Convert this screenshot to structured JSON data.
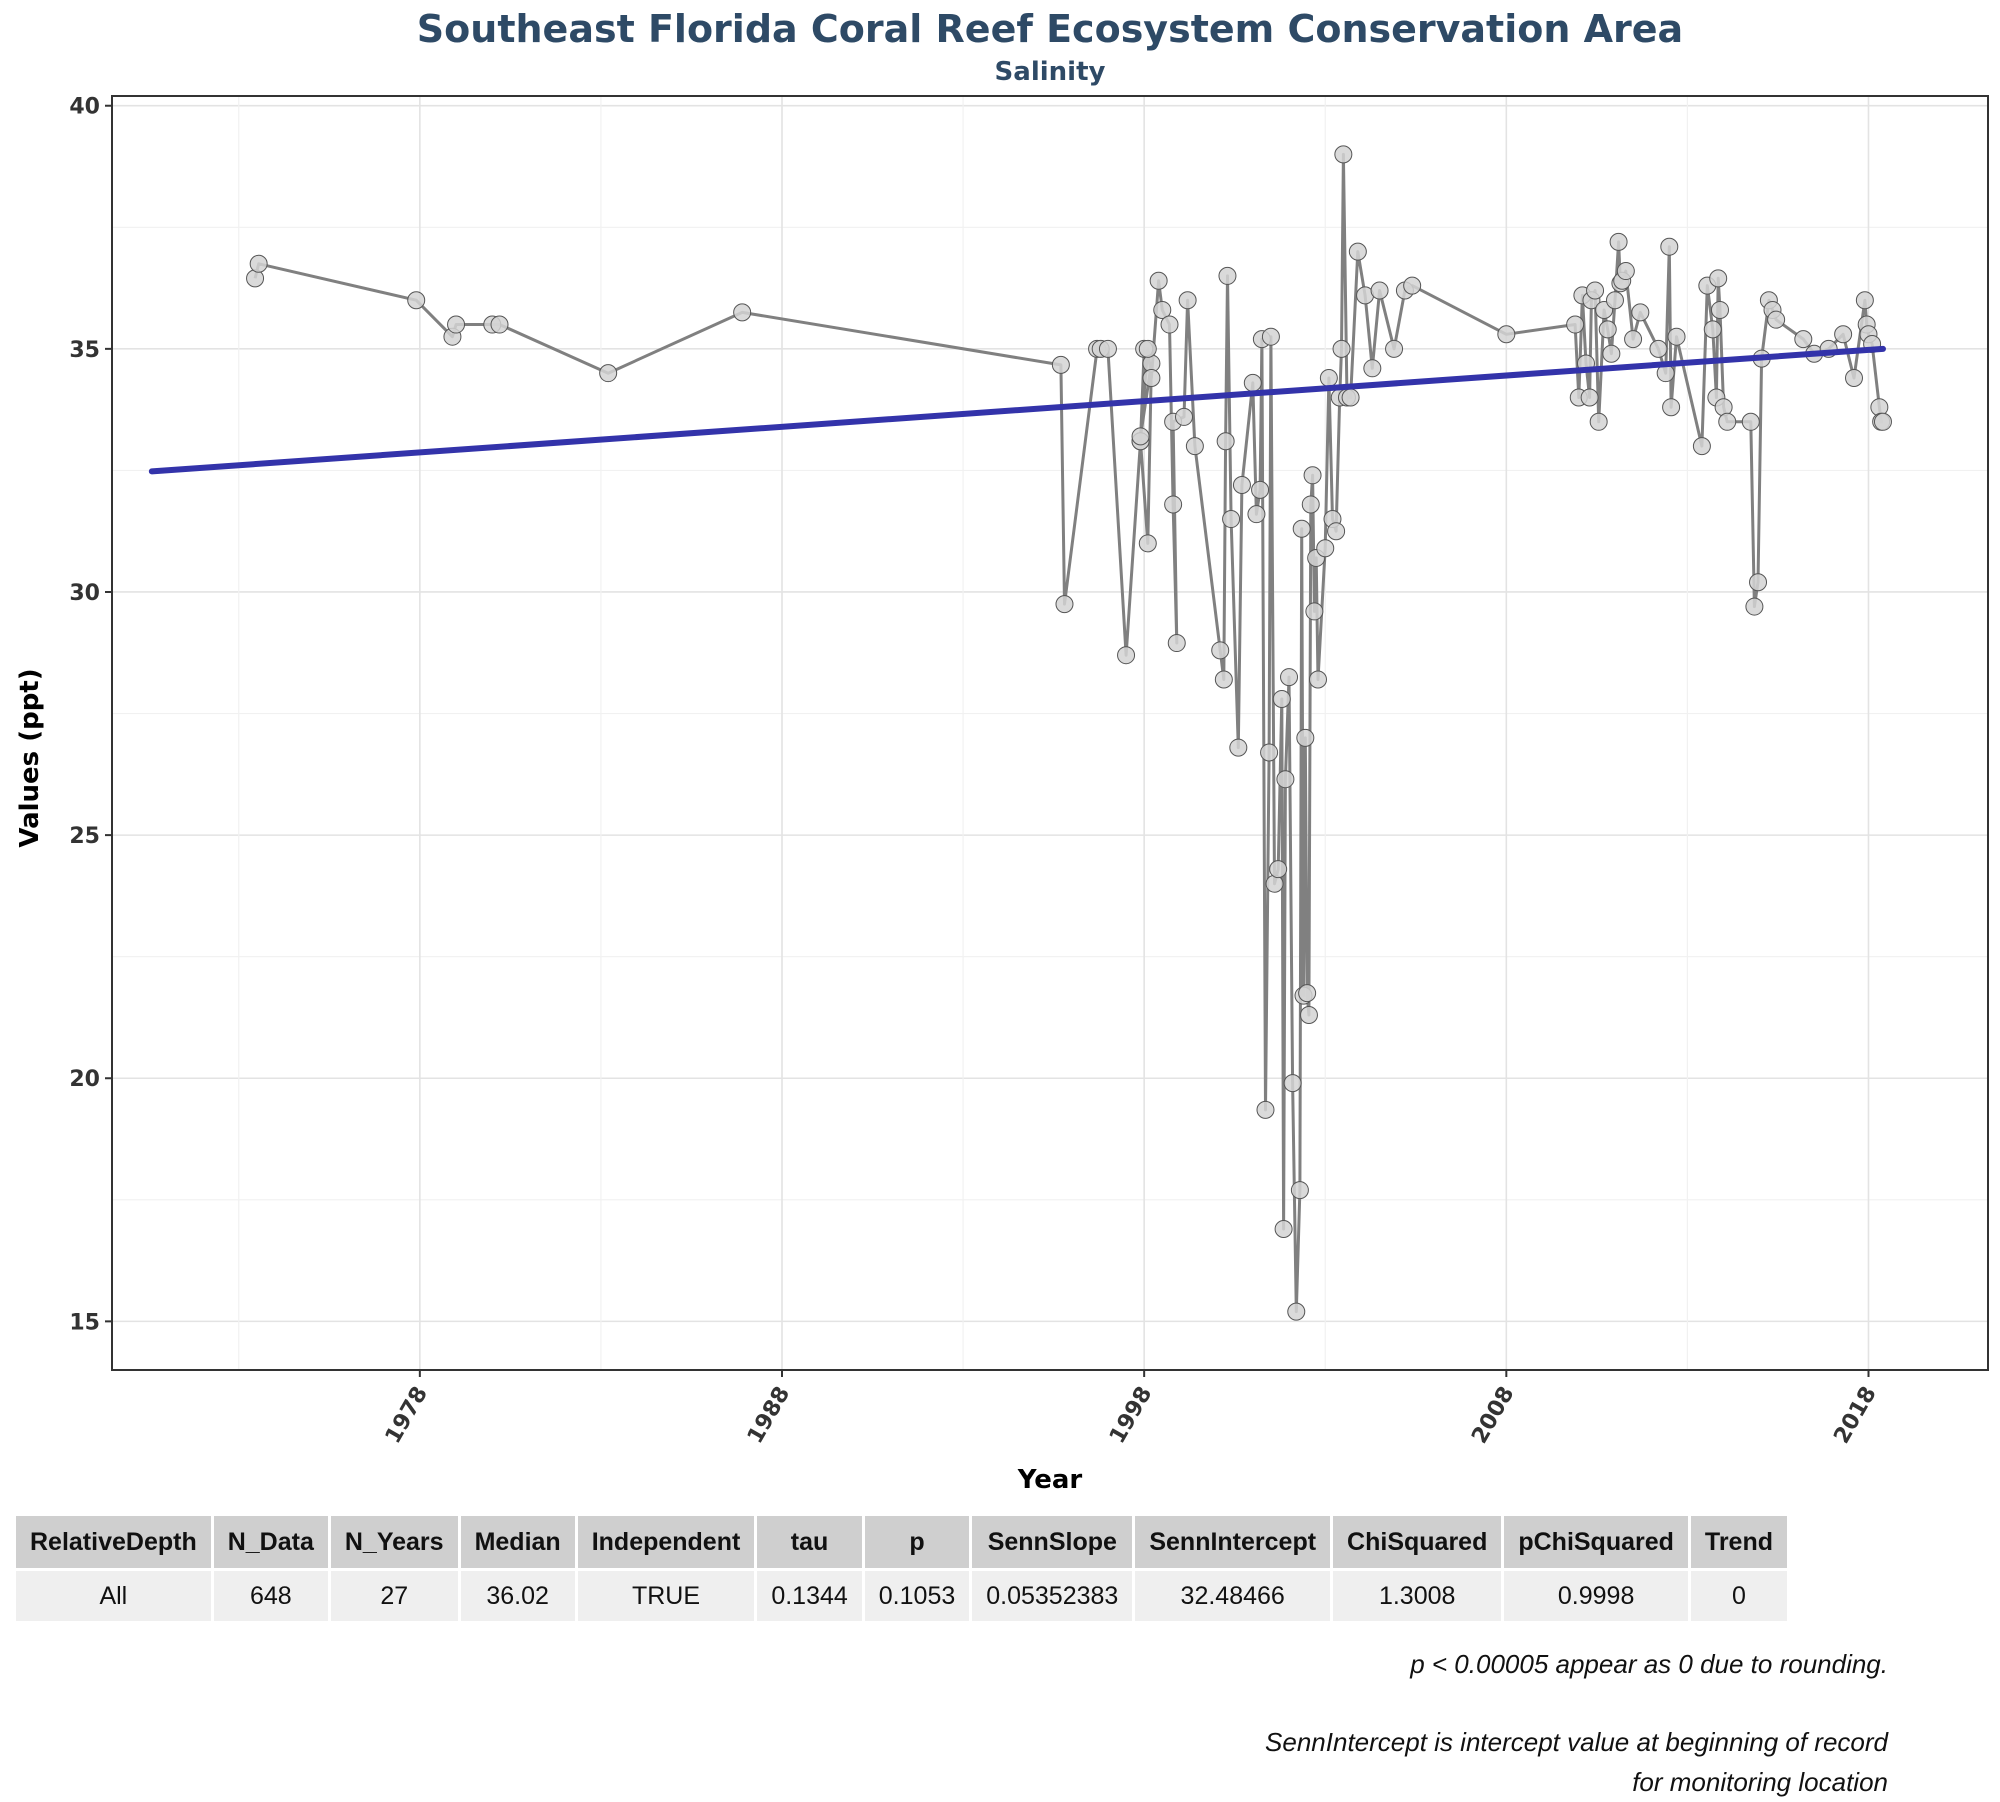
{
  "chart_data": {
    "type": "scatter",
    "title": "Southeast Florida Coral Reef Ecosystem Conservation Area",
    "subtitle": "Salinity",
    "xlabel": "Year",
    "ylabel": "Values (ppt)",
    "xlim": [
      1969.5,
      2021.3
    ],
    "ylim": [
      14.0,
      40.2
    ],
    "x_ticks": [
      1978,
      1988,
      1998,
      2008,
      2018
    ],
    "y_ticks": [
      15,
      20,
      25,
      30,
      35,
      40
    ],
    "grid": true,
    "legend": "none",
    "series": [
      {
        "mode": "lines+markers",
        "color": "#808080",
        "marker_fill": "#d3d3d3",
        "x": [
          1973.45,
          1973.55,
          1977.9,
          1978.9,
          1979.0,
          1980.0,
          1980.2,
          1983.2,
          1986.9,
          1995.7,
          1995.8,
          1996.7,
          1996.8,
          1997.0,
          1997.5,
          1997.9,
          1998.0,
          1997.9,
          1998.1,
          1998.2,
          1997.9,
          1998.1,
          1998.2,
          1998.4,
          1998.5,
          1998.7,
          1998.8,
          1998.9,
          1998.8,
          1999.1,
          1999.2,
          1999.4,
          2000.1,
          2000.2,
          2000.25,
          2000.3,
          2000.4,
          2000.6,
          2000.7,
          2001.0,
          2001.1,
          2001.2,
          2001.25,
          2001.35,
          2001.45,
          2001.5,
          2001.6,
          2001.7,
          2001.8,
          2001.85,
          2001.9,
          2002.0,
          2002.1,
          2002.2,
          2002.3,
          2002.35,
          2002.4,
          2002.45,
          2002.5,
          2002.55,
          2002.6,
          2002.65,
          2002.7,
          2002.75,
          2002.8,
          2003.0,
          2003.1,
          2003.2,
          2003.3,
          2003.4,
          2003.45,
          2003.5,
          2003.6,
          2003.7,
          2003.9,
          2004.1,
          2004.3,
          2004.5,
          2004.9,
          2005.2,
          2005.4,
          2008.0,
          2009.9,
          2010.0,
          2010.1,
          2010.2,
          2010.3,
          2010.35,
          2010.45,
          2010.55,
          2010.7,
          2010.8,
          2010.9,
          2011.0,
          2011.1,
          2011.15,
          2011.2,
          2011.3,
          2011.5,
          2011.7,
          2012.2,
          2012.4,
          2012.5,
          2012.55,
          2012.7,
          2013.4,
          2013.55,
          2013.7,
          2013.8,
          2013.85,
          2013.9,
          2014.0,
          2014.1,
          2014.75,
          2014.85,
          2014.95,
          2015.05,
          2015.25,
          2015.35,
          2015.45,
          2016.2,
          2016.5,
          2016.9,
          2017.3,
          2017.6,
          2017.9,
          2017.95,
          2018.0,
          2018.1,
          2018.3,
          2018.35,
          2018.4
        ],
        "y": [
          36.45,
          36.75,
          36.0,
          35.25,
          35.5,
          35.5,
          35.5,
          34.5,
          35.75,
          34.67,
          29.75,
          35.0,
          35.0,
          35.0,
          28.7,
          33.1,
          35.0,
          33.1,
          31.0,
          34.7,
          33.2,
          35.0,
          34.4,
          36.4,
          35.8,
          35.5,
          31.8,
          28.95,
          33.5,
          33.6,
          36.0,
          33.0,
          28.8,
          28.2,
          33.1,
          36.5,
          31.5,
          26.8,
          32.2,
          34.3,
          31.6,
          32.1,
          35.2,
          19.35,
          26.7,
          35.25,
          24.0,
          24.3,
          27.8,
          16.9,
          26.15,
          28.25,
          19.9,
          15.2,
          17.7,
          31.3,
          21.7,
          27.0,
          21.75,
          21.3,
          31.8,
          32.4,
          29.6,
          30.7,
          28.2,
          30.9,
          34.4,
          31.5,
          31.25,
          34.0,
          35.0,
          39.0,
          34.0,
          34.0,
          37.0,
          36.1,
          34.6,
          36.2,
          35.0,
          36.2,
          36.3,
          35.3,
          35.5,
          34.0,
          36.1,
          34.7,
          34.0,
          36.0,
          36.2,
          33.5,
          35.8,
          35.4,
          34.9,
          36.0,
          37.2,
          36.35,
          36.4,
          36.6,
          35.2,
          35.75,
          35.0,
          34.5,
          37.1,
          33.8,
          35.25,
          33.0,
          36.3,
          35.4,
          34.0,
          36.45,
          35.8,
          33.8,
          33.5,
          33.5,
          29.7,
          30.2,
          34.8,
          36.0,
          35.8,
          35.6,
          35.2,
          34.9,
          35.0,
          35.3,
          34.4,
          36.0,
          35.5,
          35.3,
          35.1,
          33.8,
          33.5,
          33.5
        ]
      },
      {
        "mode": "line",
        "color": "#3333aa",
        "x": [
          1970.6,
          2018.4
        ],
        "y": [
          32.48,
          35.0
        ]
      }
    ]
  },
  "table": {
    "headers": [
      "RelativeDepth",
      "N_Data",
      "N_Years",
      "Median",
      "Independent",
      "tau",
      "p",
      "SennSlope",
      "SennIntercept",
      "ChiSquared",
      "pChiSquared",
      "Trend"
    ],
    "row": [
      "All",
      "648",
      "27",
      "36.02",
      "TRUE",
      "0.1344",
      "0.1053",
      "0.05352383",
      "32.48466",
      "1.3008",
      "0.9998",
      "0"
    ]
  },
  "notes": {
    "p_note": "p < 0.00005 appear as 0 due to rounding.",
    "senn_note": "SennIntercept is intercept value at beginning of record for monitoring location"
  }
}
